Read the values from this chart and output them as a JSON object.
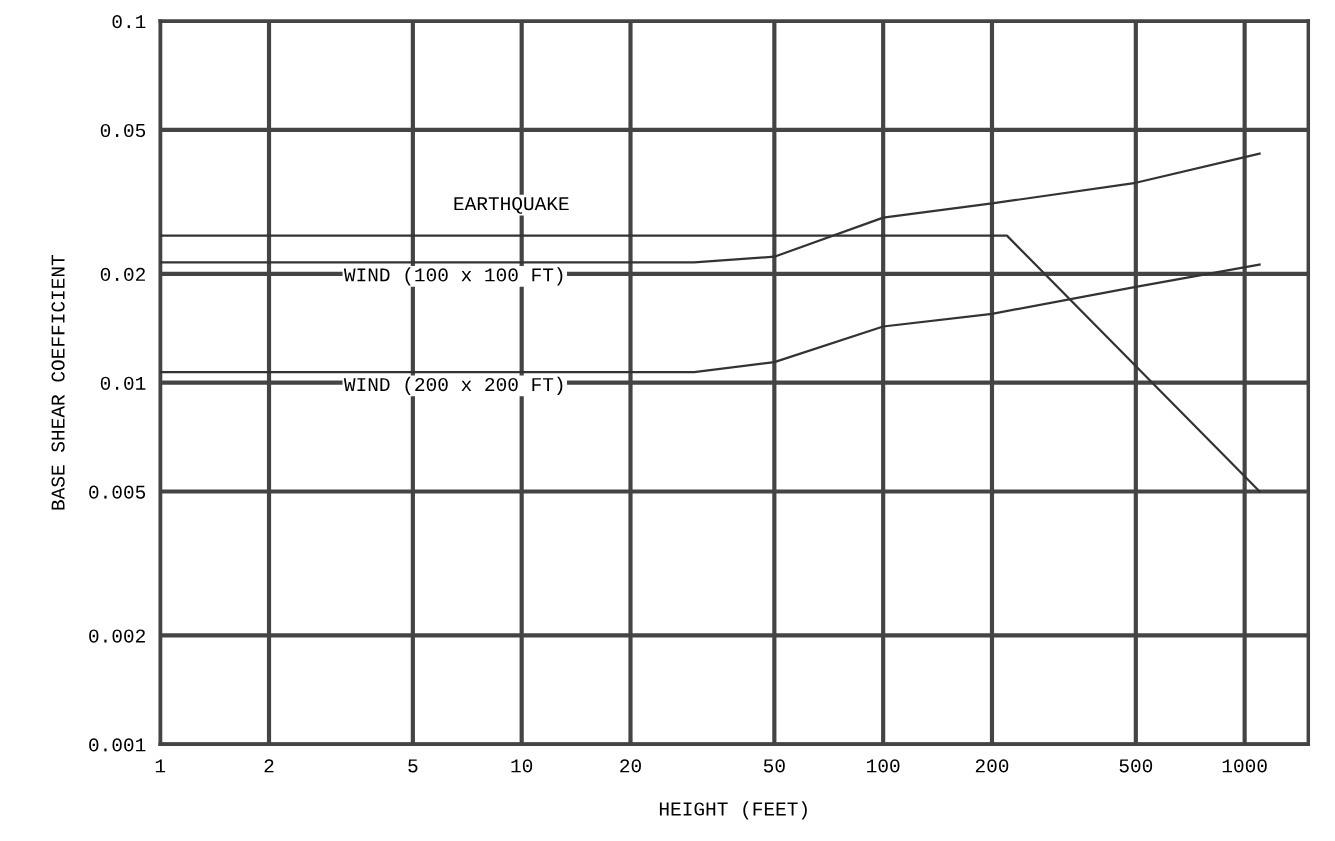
{
  "chart_data": {
    "type": "line",
    "xlabel": "HEIGHT (FEET)",
    "ylabel": "BASE SHEAR COEFFICIENT",
    "log": "xy",
    "grid": true,
    "legend": false,
    "marker": "none",
    "line_style": "solid",
    "xlim": [
      1,
      1500
    ],
    "xticks": [
      1,
      2,
      5,
      10,
      20,
      50,
      100,
      200,
      500,
      1000
    ],
    "ylim": [
      0.001,
      0.1
    ],
    "yticks": [
      0.001,
      0.002,
      0.005,
      0.01,
      0.02,
      0.05,
      0.1
    ],
    "series": [
      {
        "name": "EARTHQUAKE",
        "color": "#333333",
        "x": [
          1,
          220,
          1100
        ],
        "values": [
          0.0255,
          0.0255,
          0.005
        ]
      },
      {
        "name": "WIND (100 x 100 FT)",
        "color": "#333333",
        "x": [
          1,
          30,
          50,
          100,
          200,
          500,
          1100
        ],
        "values": [
          0.0215,
          0.0215,
          0.0223,
          0.0286,
          0.0313,
          0.0357,
          0.043
        ]
      },
      {
        "name": "WIND (200 x 200 FT)",
        "color": "#333333",
        "x": [
          1,
          30,
          50,
          100,
          200,
          500,
          1100
        ],
        "values": [
          0.0107,
          0.0107,
          0.0114,
          0.0143,
          0.0155,
          0.0184,
          0.0212
        ]
      }
    ]
  }
}
